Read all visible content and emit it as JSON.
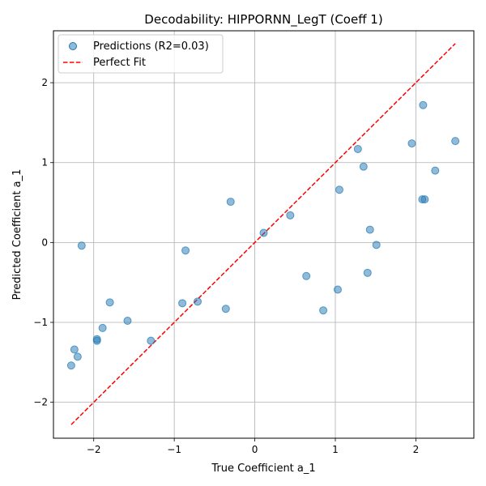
{
  "chart_data": {
    "type": "scatter",
    "title": "Decodability: HIPPORNN_LegT (Coeff 1)",
    "xlabel": "True Coefficient a_1",
    "ylabel": "Predicted Coefficient a_1",
    "xlim": [
      -2.5,
      2.72
    ],
    "ylim": [
      -2.45,
      2.65
    ],
    "xticks": [
      -2,
      -1,
      0,
      1,
      2
    ],
    "yticks": [
      -2,
      -1,
      0,
      1,
      2
    ],
    "xtick_labels": [
      "−2",
      "−1",
      "0",
      "1",
      "2"
    ],
    "ytick_labels": [
      "−2",
      "−1",
      "0",
      "1",
      "2"
    ],
    "grid": true,
    "legend_position": "top-left",
    "series": [
      {
        "name": "Predictions (R2=0.03)",
        "kind": "points",
        "color": "#1f77b4",
        "x": [
          -2.28,
          -2.24,
          -2.2,
          -2.15,
          -1.96,
          -1.96,
          -1.89,
          -1.8,
          -1.58,
          -1.29,
          -0.9,
          -0.86,
          -0.71,
          -0.36,
          -0.3,
          0.11,
          0.44,
          0.64,
          0.85,
          1.03,
          1.05,
          1.28,
          1.35,
          1.4,
          1.43,
          1.51,
          1.95,
          2.08,
          2.09,
          2.11,
          2.24,
          2.49
        ],
        "y": [
          -1.54,
          -1.34,
          -1.43,
          -0.04,
          -1.21,
          -1.23,
          -1.07,
          -0.75,
          -0.98,
          -1.23,
          -0.76,
          -0.1,
          -0.74,
          -0.83,
          0.51,
          0.12,
          0.34,
          -0.42,
          -0.85,
          -0.59,
          0.66,
          1.17,
          0.95,
          -0.38,
          0.16,
          -0.03,
          1.24,
          0.54,
          1.72,
          0.54,
          0.9,
          1.27
        ]
      },
      {
        "name": "Perfect Fit",
        "kind": "line",
        "color": "#ff0000",
        "x": [
          -2.28,
          2.49
        ],
        "y": [
          -2.28,
          2.49
        ]
      }
    ]
  }
}
